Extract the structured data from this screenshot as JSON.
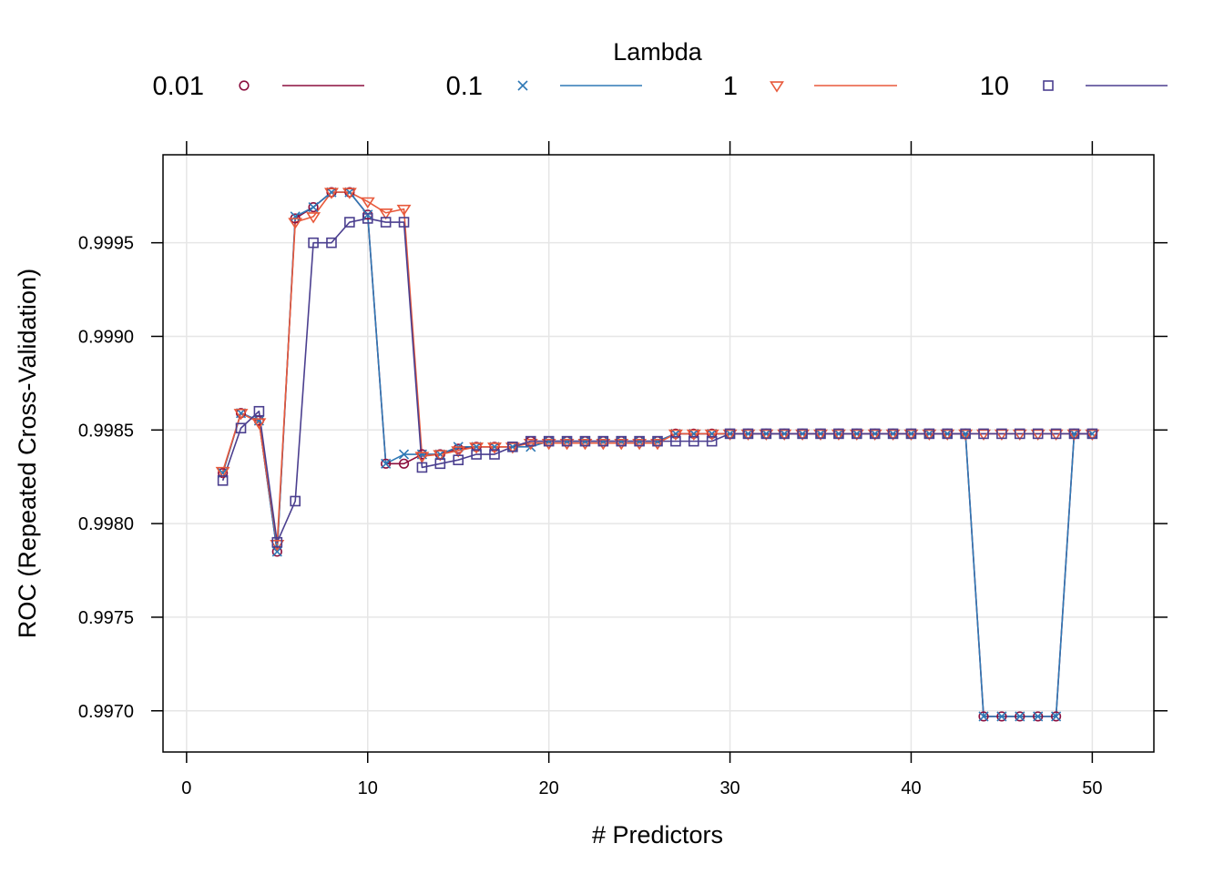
{
  "chart_data": {
    "type": "line",
    "xlabel": "# Predictors",
    "ylabel": "ROC (Repeated Cross-Validation)",
    "xlim": [
      -1.3,
      53.4
    ],
    "ylim": [
      0.99678,
      0.99997
    ],
    "x_ticks": [
      0,
      10,
      20,
      30,
      40,
      50
    ],
    "x_tick_labels": [
      "0",
      "10",
      "20",
      "30",
      "40",
      "50"
    ],
    "y_ticks": [
      0.997,
      0.9975,
      0.998,
      0.9985,
      0.999,
      0.9995
    ],
    "y_tick_labels": [
      "0.9970",
      "0.9975",
      "0.9980",
      "0.9985",
      "0.9990",
      "0.9995"
    ],
    "grid": true,
    "legend": {
      "title": "Lambda",
      "position": "top"
    },
    "x": [
      2,
      3,
      4,
      5,
      6,
      7,
      8,
      9,
      10,
      11,
      12,
      13,
      14,
      15,
      16,
      17,
      18,
      19,
      20,
      21,
      22,
      23,
      24,
      25,
      26,
      27,
      28,
      29,
      30,
      31,
      32,
      33,
      34,
      35,
      36,
      37,
      38,
      39,
      40,
      41,
      42,
      43,
      44,
      45,
      46,
      47,
      48,
      49,
      50
    ],
    "series": [
      {
        "name": "0.01",
        "color": "#8B0F3E",
        "marker": "circle",
        "values": [
          0.99827,
          0.99859,
          0.99855,
          0.99785,
          0.99963,
          0.99969,
          0.99977,
          0.99977,
          0.99965,
          0.99832,
          0.99832,
          0.99837,
          0.99837,
          0.9984,
          0.99841,
          0.99841,
          0.99841,
          0.99844,
          0.99844,
          0.99844,
          0.99844,
          0.99844,
          0.99844,
          0.99844,
          0.99844,
          0.99848,
          0.99848,
          0.99848,
          0.99848,
          0.99848,
          0.99848,
          0.99848,
          0.99848,
          0.99848,
          0.99848,
          0.99848,
          0.99848,
          0.99848,
          0.99848,
          0.99848,
          0.99848,
          0.99848,
          0.99697,
          0.99697,
          0.99697,
          0.99697,
          0.99697,
          0.99848,
          0.99848
        ]
      },
      {
        "name": "0.1",
        "color": "#2E78B5",
        "marker": "x",
        "values": [
          0.99827,
          0.99859,
          0.99855,
          0.99785,
          0.99964,
          0.99969,
          0.99977,
          0.99977,
          0.99965,
          0.99832,
          0.99837,
          0.99837,
          0.99837,
          0.99841,
          0.99841,
          0.99841,
          0.99841,
          0.99841,
          0.99844,
          0.99844,
          0.99844,
          0.99844,
          0.99844,
          0.99844,
          0.99844,
          0.99848,
          0.99848,
          0.99848,
          0.99848,
          0.99848,
          0.99848,
          0.99848,
          0.99848,
          0.99848,
          0.99848,
          0.99848,
          0.99848,
          0.99848,
          0.99848,
          0.99848,
          0.99848,
          0.99848,
          0.99697,
          0.99697,
          0.99697,
          0.99697,
          0.99697,
          0.99848,
          0.99848
        ]
      },
      {
        "name": "1",
        "color": "#E8593B",
        "marker": "triangle-down",
        "values": [
          0.99828,
          0.99859,
          0.99854,
          0.99789,
          0.99961,
          0.99964,
          0.99977,
          0.99977,
          0.99972,
          0.99966,
          0.99968,
          0.99836,
          0.99837,
          0.99839,
          0.99841,
          0.99841,
          0.99841,
          0.99843,
          0.99843,
          0.99843,
          0.99843,
          0.99843,
          0.99843,
          0.99843,
          0.99843,
          0.99848,
          0.99848,
          0.99848,
          0.99848,
          0.99848,
          0.99848,
          0.99848,
          0.99848,
          0.99848,
          0.99848,
          0.99848,
          0.99848,
          0.99848,
          0.99848,
          0.99848,
          0.99848,
          0.99848,
          0.99848,
          0.99848,
          0.99848,
          0.99848,
          0.99848,
          0.99848,
          0.99848
        ]
      },
      {
        "name": "10",
        "color": "#4B3F8F",
        "marker": "square",
        "values": [
          0.99823,
          0.99851,
          0.9986,
          0.9979,
          0.99812,
          0.9995,
          0.9995,
          0.99961,
          0.99963,
          0.99961,
          0.99961,
          0.9983,
          0.99832,
          0.99834,
          0.99837,
          0.99837,
          0.99841,
          0.99844,
          0.99844,
          0.99844,
          0.99844,
          0.99844,
          0.99844,
          0.99844,
          0.99844,
          0.99844,
          0.99844,
          0.99844,
          0.99848,
          0.99848,
          0.99848,
          0.99848,
          0.99848,
          0.99848,
          0.99848,
          0.99848,
          0.99848,
          0.99848,
          0.99848,
          0.99848,
          0.99848,
          0.99848,
          0.99848,
          0.99848,
          0.99848,
          0.99848,
          0.99848,
          0.99848,
          0.99848
        ]
      }
    ]
  }
}
